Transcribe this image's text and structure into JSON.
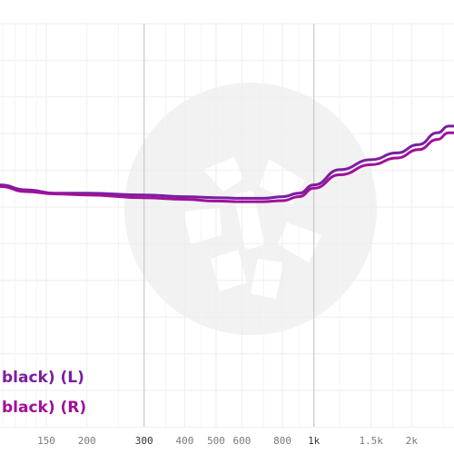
{
  "chart_data": {
    "type": "line",
    "x_scale": "log",
    "xlim": [
      108,
      2700
    ],
    "ylim": [
      0,
      12
    ],
    "grid": true,
    "x_ticks": [
      {
        "value": 150,
        "label": "150",
        "major": false
      },
      {
        "value": 200,
        "label": "200",
        "major": false
      },
      {
        "value": 300,
        "label": "300",
        "major": true
      },
      {
        "value": 400,
        "label": "400",
        "major": false
      },
      {
        "value": 500,
        "label": "500",
        "major": false
      },
      {
        "value": 600,
        "label": "600",
        "major": false
      },
      {
        "value": 800,
        "label": "800",
        "major": false
      },
      {
        "value": 1000,
        "label": "1k",
        "major": true
      },
      {
        "value": 1500,
        "label": "1.5k",
        "major": false
      },
      {
        "value": 2000,
        "label": "2k",
        "major": false
      }
    ],
    "series": [
      {
        "name": "black) (L)",
        "color": "#7a1fa0",
        "x": [
          108,
          130,
          160,
          200,
          300,
          400,
          500,
          600,
          700,
          800,
          900,
          1000,
          1200,
          1500,
          1800,
          2100,
          2400,
          2600,
          2700
        ],
        "y": [
          7.2,
          7.05,
          6.95,
          6.95,
          6.9,
          6.85,
          6.82,
          6.8,
          6.8,
          6.85,
          6.95,
          7.2,
          7.65,
          7.95,
          8.15,
          8.4,
          8.75,
          8.95,
          8.95
        ]
      },
      {
        "name": "black) (R)",
        "color": "#a0109a",
        "x": [
          108,
          130,
          160,
          200,
          300,
          400,
          500,
          600,
          700,
          800,
          900,
          1000,
          1200,
          1500,
          1800,
          2100,
          2400,
          2600,
          2700
        ],
        "y": [
          7.15,
          7.0,
          6.93,
          6.9,
          6.82,
          6.77,
          6.72,
          6.7,
          6.7,
          6.73,
          6.85,
          7.1,
          7.5,
          7.8,
          8.0,
          8.25,
          8.55,
          8.75,
          8.75
        ]
      }
    ],
    "legend_placement": "bottom-left"
  },
  "colors": {
    "background": "#ffffff",
    "grid_minor": "#eeeeee",
    "grid_major": "#c8c8c8",
    "watermark": "#f2f2f2"
  }
}
